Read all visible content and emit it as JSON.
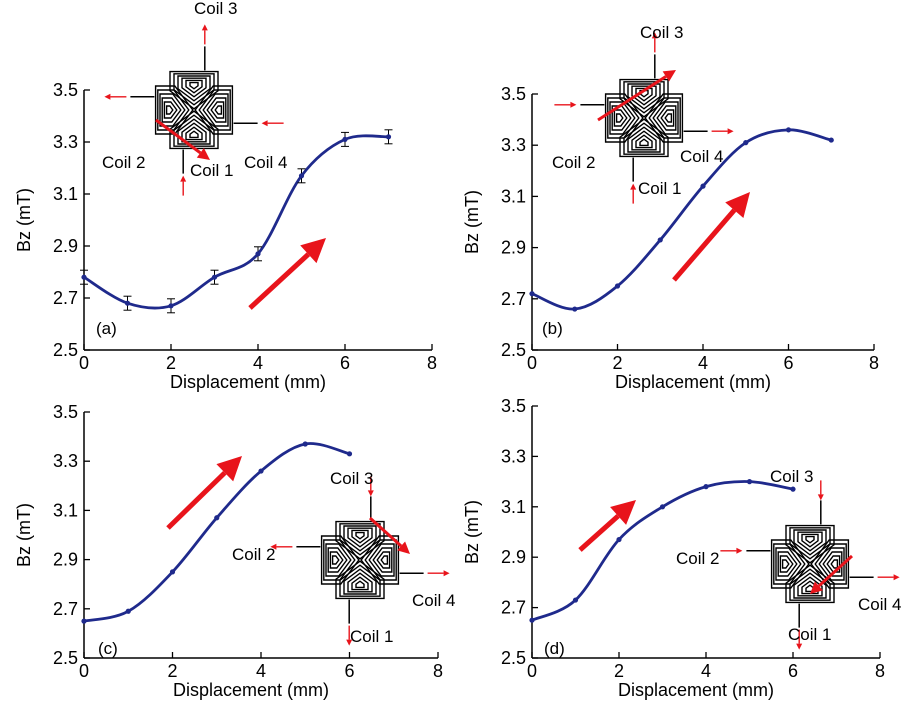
{
  "chart_data": [
    {
      "type": "line",
      "panel_label": "(a)",
      "xlabel": "Displacement (mm)",
      "ylabel": "Bz (mT)",
      "xlim": [
        0,
        8
      ],
      "ylim": [
        2.5,
        3.5
      ],
      "xticks": [
        "0",
        "2",
        "4",
        "6",
        "8"
      ],
      "yticks": [
        "2.5",
        "2.7",
        "2.9",
        "3.1",
        "3.3",
        "3.5"
      ],
      "line_color": "#1f2a8c",
      "error_bars": true,
      "x": [
        0,
        1,
        2,
        3,
        4,
        5,
        6,
        7
      ],
      "y": [
        2.78,
        2.68,
        2.67,
        2.78,
        2.87,
        3.17,
        3.31,
        3.32
      ],
      "coil_labels": [
        "Coil 1",
        "Coil 2",
        "Coil 3",
        "Coil 4"
      ],
      "arrow_color": "#e8141b",
      "trend_arrow": "up-right"
    },
    {
      "type": "line",
      "panel_label": "(b)",
      "xlabel": "Displacement (mm)",
      "ylabel": "Bz (mT)",
      "xlim": [
        0,
        8
      ],
      "ylim": [
        2.5,
        3.5
      ],
      "xticks": [
        "0",
        "2",
        "4",
        "6",
        "8"
      ],
      "yticks": [
        "2.5",
        "2.7",
        "2.9",
        "3.1",
        "3.3",
        "3.5"
      ],
      "line_color": "#1f2a8c",
      "x": [
        0,
        1,
        2,
        3,
        4,
        5,
        6,
        7
      ],
      "y": [
        2.72,
        2.66,
        2.75,
        2.93,
        3.14,
        3.31,
        3.36,
        3.32
      ],
      "coil_labels": [
        "Coil 1",
        "Coil 2",
        "Coil 3",
        "Coil 4"
      ],
      "arrow_color": "#e8141b",
      "trend_arrow": "up-right"
    },
    {
      "type": "line",
      "panel_label": "(c)",
      "xlabel": "Displacement (mm)",
      "ylabel": "Bz (mT)",
      "xlim": [
        0,
        8
      ],
      "ylim": [
        2.5,
        3.5
      ],
      "xticks": [
        "0",
        "2",
        "4",
        "6",
        "8"
      ],
      "yticks": [
        "2.5",
        "2.7",
        "2.9",
        "3.1",
        "3.3",
        "3.5"
      ],
      "line_color": "#1f2a8c",
      "x": [
        0,
        1,
        2,
        3,
        4,
        5,
        6
      ],
      "y": [
        2.65,
        2.69,
        2.85,
        3.07,
        3.26,
        3.37,
        3.33
      ],
      "coil_labels": [
        "Coil 1",
        "Coil 2",
        "Coil 3",
        "Coil 4"
      ],
      "arrow_color": "#e8141b",
      "trend_arrow": "up-right"
    },
    {
      "type": "line",
      "panel_label": "(d)",
      "xlabel": "Displacement (mm)",
      "ylabel": "Bz (mT)",
      "xlim": [
        0,
        8
      ],
      "ylim": [
        2.5,
        3.5
      ],
      "xticks": [
        "0",
        "2",
        "4",
        "6",
        "8"
      ],
      "yticks": [
        "2.5",
        "2.7",
        "2.9",
        "3.1",
        "3.3",
        "3.5"
      ],
      "line_color": "#1f2a8c",
      "x": [
        0,
        1,
        2,
        3,
        4,
        5,
        6
      ],
      "y": [
        2.65,
        2.73,
        2.97,
        3.1,
        3.18,
        3.2,
        3.17
      ],
      "coil_labels": [
        "Coil 1",
        "Coil 2",
        "Coil 3",
        "Coil 4"
      ],
      "arrow_color": "#e8141b",
      "trend_arrow": "up-right"
    }
  ]
}
